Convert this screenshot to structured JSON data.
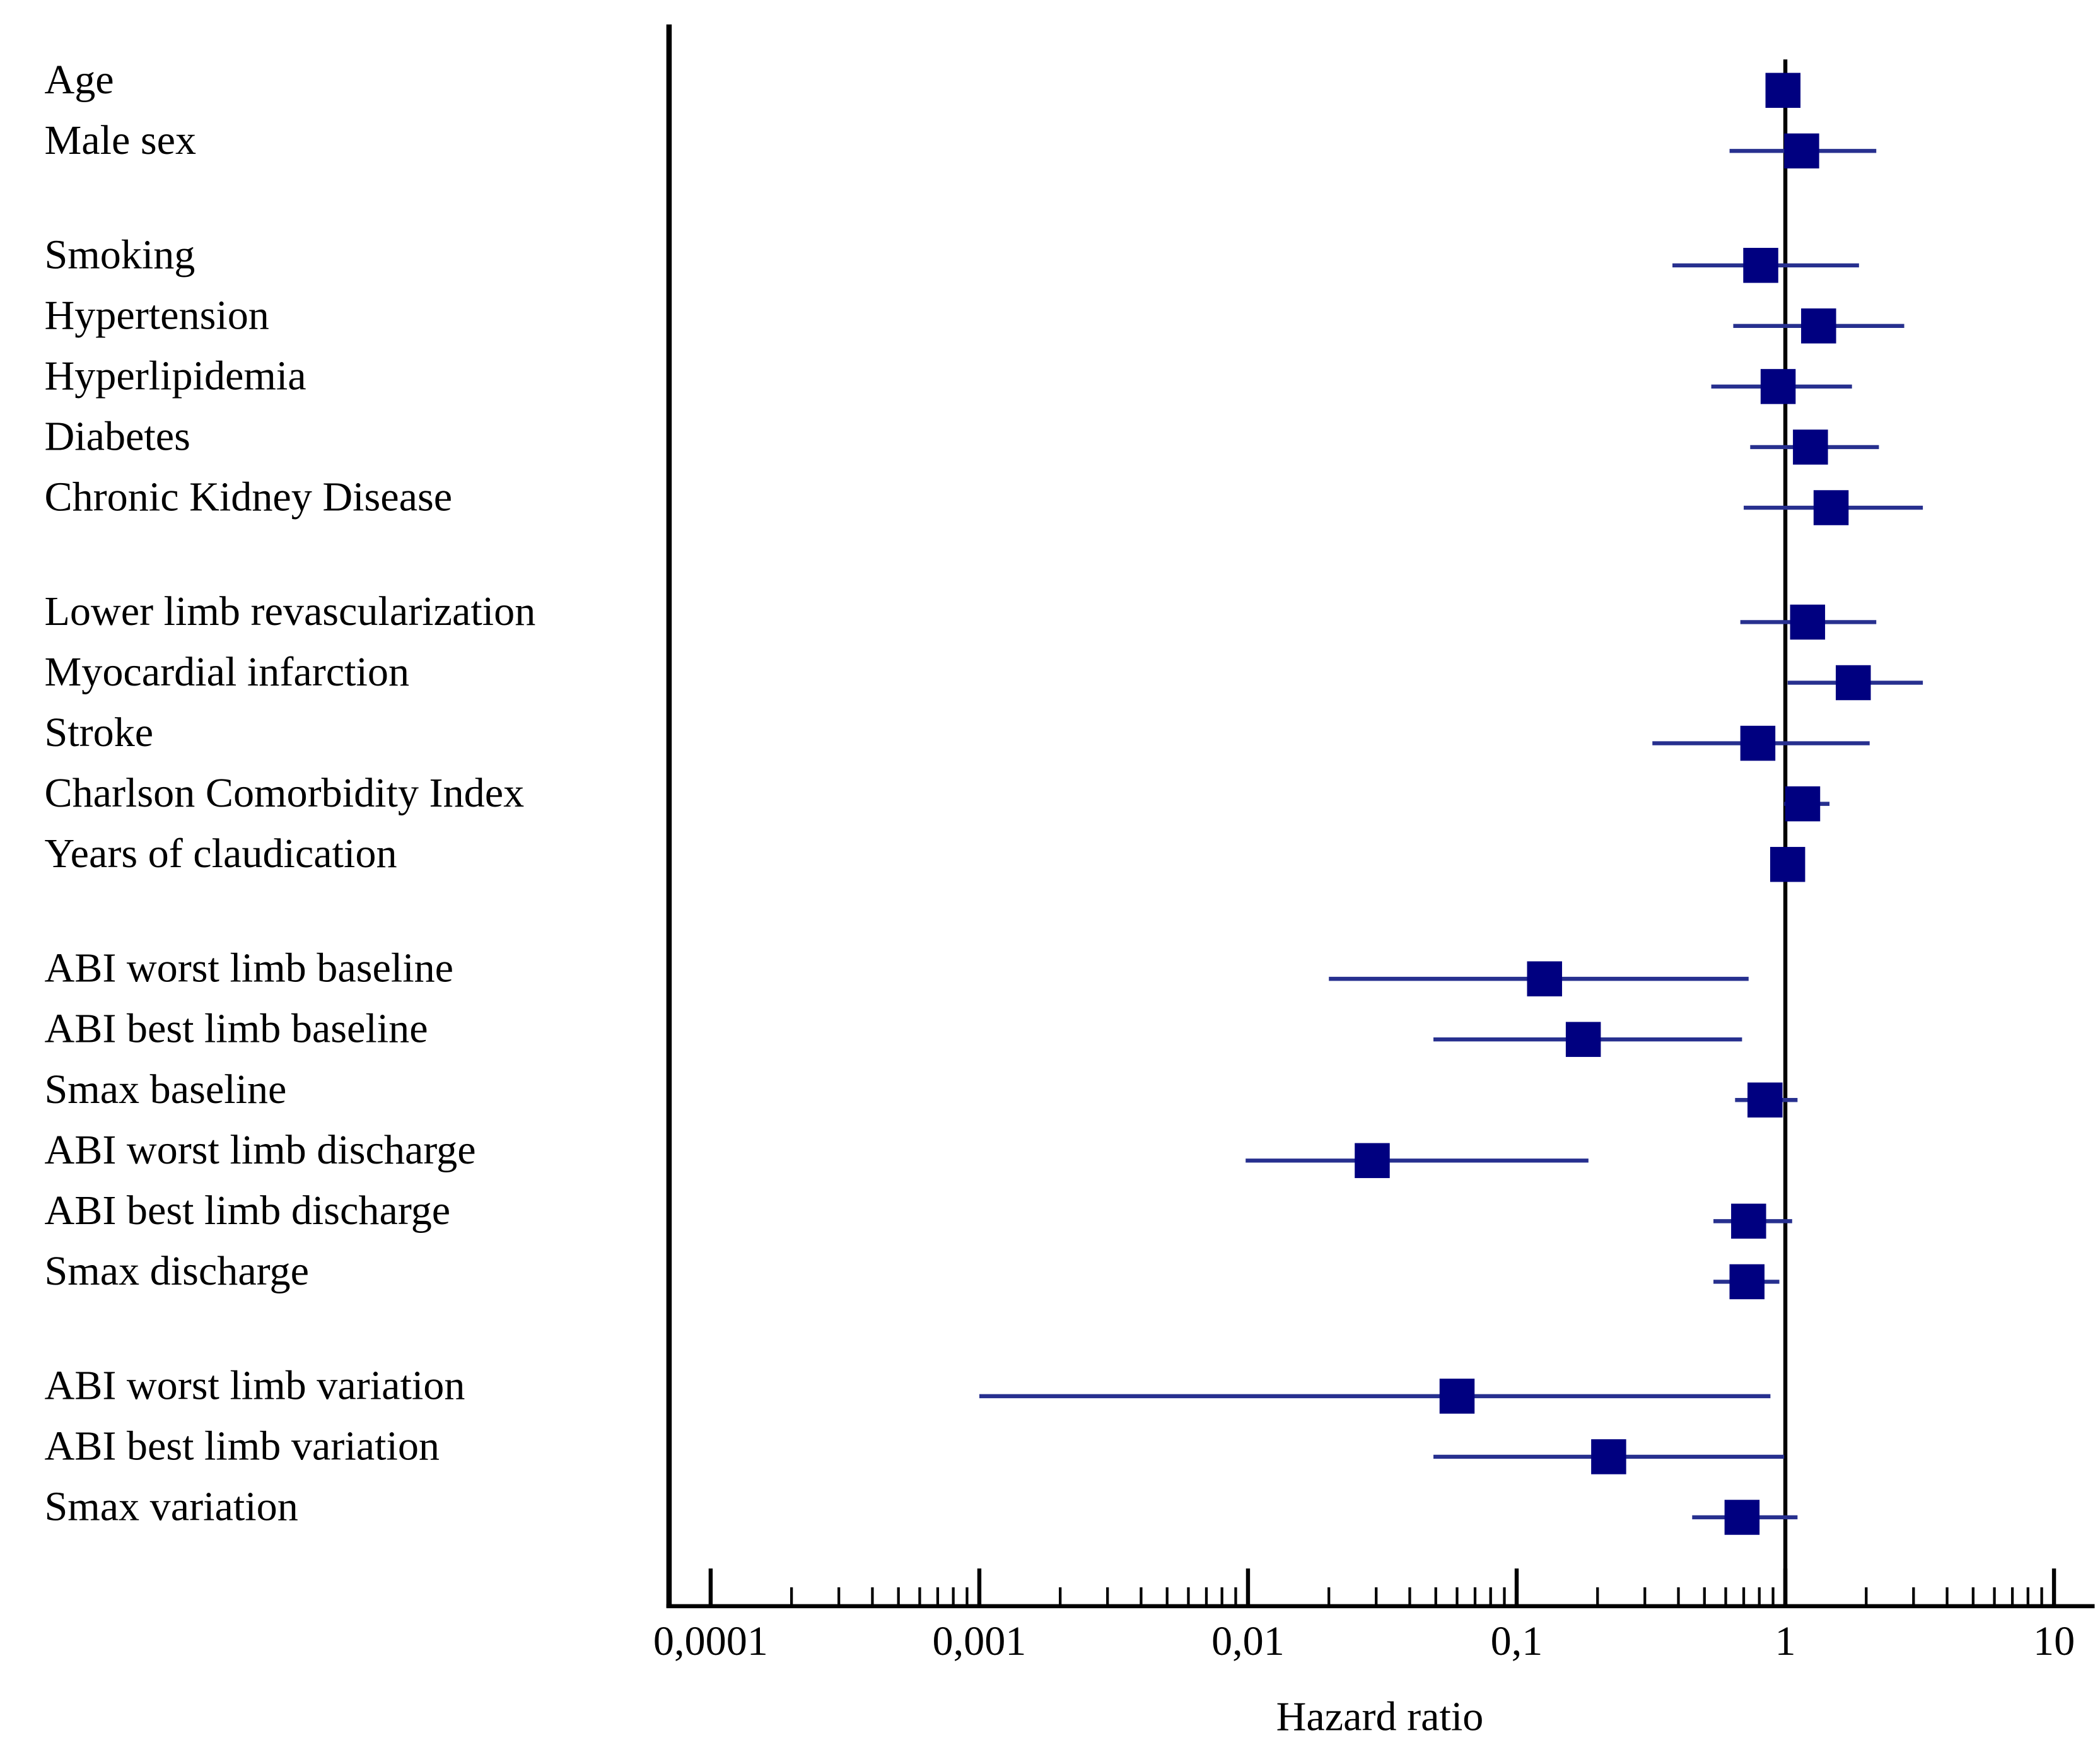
{
  "chart_data": {
    "type": "forest",
    "x_label": "Hazard ratio",
    "log_x": true,
    "categories": [
      "Age",
      "Male sex",
      null,
      "Smoking",
      "Hypertension",
      "Hyperlipidemia",
      "Diabetes",
      "Chronic Kidney Disease",
      null,
      "Lower limb revascularization",
      "Myocardial infarction",
      "Stroke",
      "Charlson Comorbidity Index",
      "Years of claudication",
      null,
      "ABI worst limb baseline",
      "ABI best limb baseline",
      "Smax baseline",
      "ABI worst limb discharge",
      "ABI best limb discharge",
      "Smax discharge",
      null,
      "ABI worst limb variation",
      "ABI best limb variation",
      "Smax variation"
    ],
    "series": [
      {
        "color": "#000080",
        "ci_color": "#27308f",
        "values": [
          0.98,
          1.15,
          null,
          0.81,
          1.33,
          0.94,
          1.24,
          1.48,
          null,
          1.21,
          1.79,
          0.79,
          1.16,
          1.02,
          null,
          0.127,
          0.177,
          0.84,
          0.029,
          0.73,
          0.72,
          null,
          0.06,
          0.22,
          0.69
        ],
        "lower": [
          0.96,
          0.62,
          null,
          0.38,
          0.64,
          0.53,
          0.74,
          0.7,
          null,
          0.68,
          1.02,
          0.32,
          0.99,
          1.0,
          null,
          0.02,
          0.049,
          0.65,
          0.0098,
          0.54,
          0.54,
          null,
          0.001,
          0.049,
          0.45
        ],
        "upper": [
          1.01,
          2.18,
          null,
          1.88,
          2.77,
          1.77,
          2.23,
          3.25,
          null,
          2.18,
          3.25,
          2.06,
          1.46,
          1.04,
          null,
          0.73,
          0.69,
          1.11,
          0.185,
          1.06,
          0.95,
          null,
          0.88,
          0.99,
          1.11
        ]
      }
    ],
    "reference_line": 1,
    "xlim": [
      7e-05,
      14
    ],
    "xticks": [
      {
        "value": 0.0001,
        "label": "0,0001"
      },
      {
        "value": 0.001,
        "label": "0,001"
      },
      {
        "value": 0.01,
        "label": "0,01"
      },
      {
        "value": 0.1,
        "label": "0,1"
      },
      1,
      10
    ],
    "xminorticks": [
      0.0002,
      0.0003,
      0.0004,
      0.0005,
      0.0006,
      0.0007,
      0.0008,
      0.0009,
      0.002,
      0.003,
      0.004,
      0.005,
      0.006,
      0.007,
      0.008,
      0.009,
      0.02,
      0.03,
      0.04,
      0.05,
      0.06,
      0.07,
      0.08,
      0.09,
      0.2,
      0.3,
      0.4,
      0.5,
      0.6,
      0.7,
      0.8,
      0.9,
      2,
      3,
      4,
      5,
      6,
      7,
      8,
      9
    ]
  }
}
